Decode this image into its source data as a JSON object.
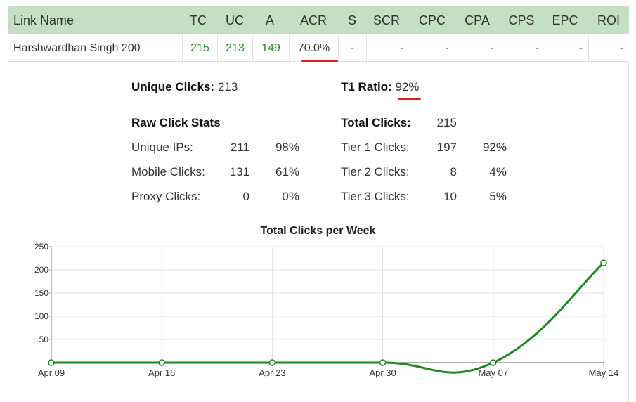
{
  "table": {
    "headers": [
      "Link Name",
      "TC",
      "UC",
      "A",
      "ACR",
      "S",
      "SCR",
      "CPC",
      "CPA",
      "CPS",
      "EPC",
      "ROI"
    ],
    "row": {
      "link_name": "Harshwardhan Singh 200",
      "tc": "215",
      "uc": "213",
      "a": "149",
      "acr": "70.0%",
      "s": "-",
      "scr": "-",
      "cpc": "-",
      "cpa": "-",
      "cps": "-",
      "epc": "-",
      "roi": "-"
    }
  },
  "summary": {
    "unique_clicks_label": "Unique Clicks:",
    "unique_clicks_value": "213",
    "t1_ratio_label": "T1 Ratio:",
    "t1_ratio_value": "92%"
  },
  "raw_stats": {
    "title": "Raw Click Stats",
    "rows": [
      {
        "label": "Unique IPs:",
        "count": "211",
        "pct": "98%"
      },
      {
        "label": "Mobile Clicks:",
        "count": "131",
        "pct": "61%"
      },
      {
        "label": "Proxy Clicks:",
        "count": "0",
        "pct": "0%"
      }
    ]
  },
  "tier_stats": {
    "title": "Total Clicks:",
    "total": "215",
    "rows": [
      {
        "label": "Tier 1 Clicks:",
        "count": "197",
        "pct": "92%"
      },
      {
        "label": "Tier 2 Clicks:",
        "count": "8",
        "pct": "4%"
      },
      {
        "label": "Tier 3 Clicks:",
        "count": "10",
        "pct": "5%"
      }
    ]
  },
  "colors": {
    "header_bg": "#c3e0c3",
    "green": "#2e8b2e",
    "line": "#1a8a1a",
    "accent_red": "#d62020"
  },
  "chart_data": {
    "type": "line",
    "title": "Total Clicks per Week",
    "x": [
      "Apr 09",
      "Apr 16",
      "Apr 23",
      "Apr 30",
      "May 07",
      "May 14"
    ],
    "series": [
      {
        "values": [
          0,
          0,
          0,
          0,
          0,
          215
        ]
      }
    ],
    "ylim": [
      0,
      250
    ],
    "yticks": [
      "50",
      "100",
      "150",
      "200",
      "250"
    ],
    "grid": true,
    "legend": "none"
  }
}
